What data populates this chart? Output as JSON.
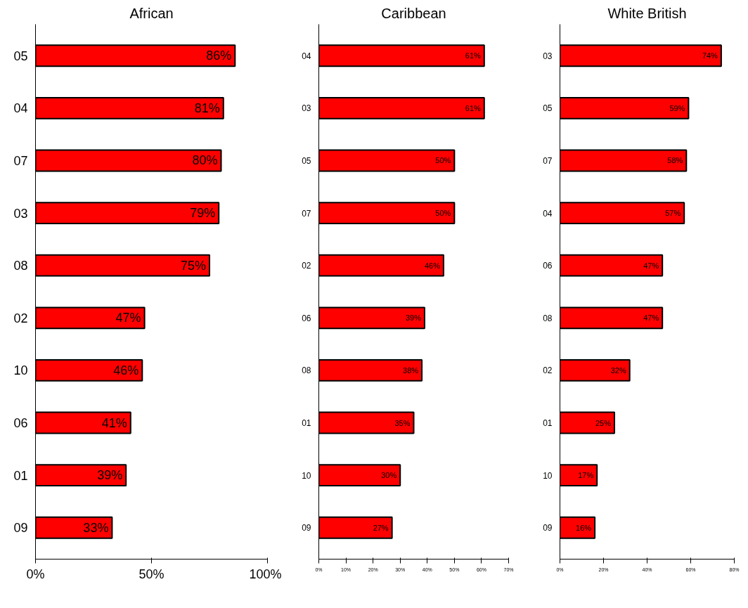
{
  "chart_data": [
    {
      "type": "bar",
      "orientation": "horizontal",
      "title": "African",
      "categories": [
        "05",
        "04",
        "07",
        "03",
        "08",
        "02",
        "10",
        "06",
        "01",
        "09"
      ],
      "values": [
        86,
        81,
        80,
        79,
        75,
        47,
        46,
        41,
        39,
        33
      ],
      "value_labels": [
        "86%",
        "81%",
        "80%",
        "79%",
        "75%",
        "47%",
        "46%",
        "41%",
        "39%",
        "33%"
      ],
      "color": "#ff0000",
      "xlim": [
        0,
        100
      ],
      "xticks": [
        {
          "value": 0,
          "label": "0%"
        },
        {
          "value": 50,
          "label": "50%"
        },
        {
          "value": 100,
          "label": "100%"
        }
      ],
      "grid": false
    },
    {
      "type": "bar",
      "orientation": "horizontal",
      "title": "Caribbean",
      "categories": [
        "04",
        "03",
        "05",
        "07",
        "02",
        "06",
        "08",
        "01",
        "10",
        "09"
      ],
      "values": [
        61,
        61,
        50,
        50,
        46,
        39,
        38,
        35,
        30,
        27
      ],
      "value_labels": [
        "61%",
        "61%",
        "50%",
        "50%",
        "46%",
        "39%",
        "38%",
        "35%",
        "30%",
        "27%"
      ],
      "color": "#ff0000",
      "xlim": [
        0,
        70
      ],
      "xticks": [
        {
          "value": 0,
          "label": "0%"
        },
        {
          "value": 10,
          "label": "10%"
        },
        {
          "value": 20,
          "label": "20%"
        },
        {
          "value": 30,
          "label": "30%"
        },
        {
          "value": 40,
          "label": "40%"
        },
        {
          "value": 50,
          "label": "50%"
        },
        {
          "value": 60,
          "label": "60%"
        },
        {
          "value": 70,
          "label": "70%"
        }
      ],
      "grid": false
    },
    {
      "type": "bar",
      "orientation": "horizontal",
      "title": "White British",
      "categories": [
        "03",
        "05",
        "07",
        "04",
        "06",
        "08",
        "02",
        "01",
        "10",
        "09"
      ],
      "values": [
        74,
        59,
        58,
        57,
        47,
        47,
        32,
        25,
        17,
        16
      ],
      "value_labels": [
        "74%",
        "59%",
        "58%",
        "57%",
        "47%",
        "47%",
        "32%",
        "25%",
        "17%",
        "16%"
      ],
      "color": "#ff0000",
      "xlim": [
        0,
        80
      ],
      "xticks": [
        {
          "value": 0,
          "label": "0%"
        },
        {
          "value": 20,
          "label": "20%"
        },
        {
          "value": 40,
          "label": "40%"
        },
        {
          "value": 60,
          "label": "60%"
        },
        {
          "value": 80,
          "label": "80%"
        }
      ],
      "grid": false
    }
  ]
}
